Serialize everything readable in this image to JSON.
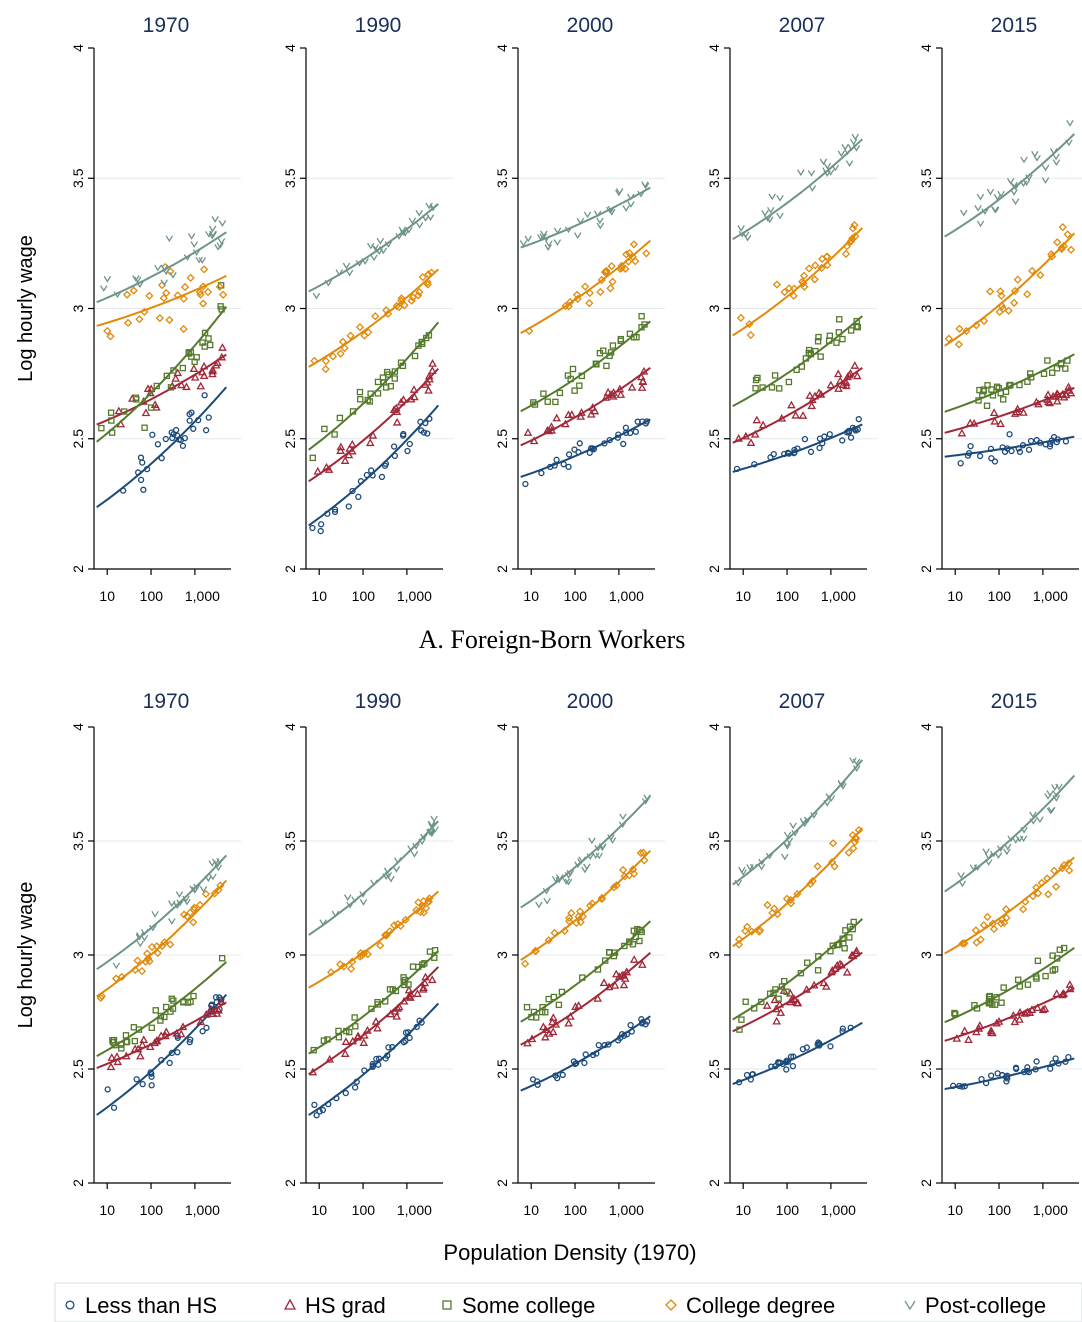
{
  "ylabel": "Log hourly wage",
  "xlabel": "Population Density (1970)",
  "y_ticks": [
    "2",
    "2.5",
    "3",
    "3.5",
    "4"
  ],
  "x_ticks": [
    "10",
    "100",
    "1,000"
  ],
  "legend": [
    {
      "label": "Less than HS",
      "symbol": "circle",
      "color": "#1b4a7a"
    },
    {
      "label": "HS grad",
      "symbol": "triangle",
      "color": "#a02838"
    },
    {
      "label": "Some college",
      "symbol": "square",
      "color": "#557a2c"
    },
    {
      "label": "College degree",
      "symbol": "diamond",
      "color": "#e08a0c"
    },
    {
      "label": "Post-college",
      "symbol": "chevron",
      "color": "#6f948a"
    }
  ],
  "chart_data": {
    "type": "scatter",
    "xscale": "log",
    "xlim": [
      5,
      6000
    ],
    "ylim": [
      2,
      4
    ],
    "panels": [
      {
        "title": "A. Foreign-Born Workers",
        "years": [
          {
            "year": "1970",
            "fits": [
              {
                "series": "Less than HS",
                "y_start": 2.23,
                "y_end": 2.71,
                "scatter": 0.09
              },
              {
                "series": "HS grad",
                "y_start": 2.55,
                "y_end": 2.83,
                "scatter": 0.05
              },
              {
                "series": "Some college",
                "y_start": 2.48,
                "y_end": 3.02,
                "scatter": 0.09
              },
              {
                "series": "College degree",
                "y_start": 2.93,
                "y_end": 3.13,
                "scatter": 0.12
              },
              {
                "series": "Post-college",
                "y_start": 3.02,
                "y_end": 3.3,
                "scatter": 0.09
              }
            ]
          },
          {
            "year": "1990",
            "fits": [
              {
                "series": "Less than HS",
                "y_start": 2.16,
                "y_end": 2.64,
                "scatter": 0.05
              },
              {
                "series": "HS grad",
                "y_start": 2.33,
                "y_end": 2.78,
                "scatter": 0.04
              },
              {
                "series": "Some college",
                "y_start": 2.45,
                "y_end": 2.96,
                "scatter": 0.05
              },
              {
                "series": "College degree",
                "y_start": 2.77,
                "y_end": 3.16,
                "scatter": 0.04
              },
              {
                "series": "Post-college",
                "y_start": 3.06,
                "y_end": 3.41,
                "scatter": 0.04
              }
            ]
          },
          {
            "year": "2000",
            "fits": [
              {
                "series": "Less than HS",
                "y_start": 2.35,
                "y_end": 2.58,
                "scatter": 0.03
              },
              {
                "series": "HS grad",
                "y_start": 2.47,
                "y_end": 2.78,
                "scatter": 0.04
              },
              {
                "series": "Some college",
                "y_start": 2.6,
                "y_end": 2.96,
                "scatter": 0.05
              },
              {
                "series": "College degree",
                "y_start": 2.9,
                "y_end": 3.27,
                "scatter": 0.05
              },
              {
                "series": "Post-college",
                "y_start": 3.23,
                "y_end": 3.47,
                "scatter": 0.05
              }
            ]
          },
          {
            "year": "2007",
            "fits": [
              {
                "series": "Less than HS",
                "y_start": 2.37,
                "y_end": 2.56,
                "scatter": 0.03
              },
              {
                "series": "HS grad",
                "y_start": 2.48,
                "y_end": 2.78,
                "scatter": 0.04
              },
              {
                "series": "Some college",
                "y_start": 2.62,
                "y_end": 2.98,
                "scatter": 0.05
              },
              {
                "series": "College degree",
                "y_start": 2.89,
                "y_end": 3.32,
                "scatter": 0.06
              },
              {
                "series": "Post-college",
                "y_start": 3.26,
                "y_end": 3.66,
                "scatter": 0.06
              }
            ]
          },
          {
            "year": "2015",
            "fits": [
              {
                "series": "Less than HS",
                "y_start": 2.43,
                "y_end": 2.51,
                "scatter": 0.04
              },
              {
                "series": "HS grad",
                "y_start": 2.52,
                "y_end": 2.7,
                "scatter": 0.03
              },
              {
                "series": "Some college",
                "y_start": 2.6,
                "y_end": 2.83,
                "scatter": 0.04
              },
              {
                "series": "College degree",
                "y_start": 2.85,
                "y_end": 3.3,
                "scatter": 0.07
              },
              {
                "series": "Post-college",
                "y_start": 3.27,
                "y_end": 3.68,
                "scatter": 0.06
              }
            ]
          }
        ]
      },
      {
        "title": "",
        "years": [
          {
            "year": "1970",
            "fits": [
              {
                "series": "Less than HS",
                "y_start": 2.29,
                "y_end": 2.84,
                "scatter": 0.06
              },
              {
                "series": "HS grad",
                "y_start": 2.5,
                "y_end": 2.8,
                "scatter": 0.03
              },
              {
                "series": "Some college",
                "y_start": 2.55,
                "y_end": 2.98,
                "scatter": 0.04
              },
              {
                "series": "College degree",
                "y_start": 2.81,
                "y_end": 3.34,
                "scatter": 0.04
              },
              {
                "series": "Post-college",
                "y_start": 2.93,
                "y_end": 3.45,
                "scatter": 0.04
              }
            ]
          },
          {
            "year": "1990",
            "fits": [
              {
                "series": "Less than HS",
                "y_start": 2.29,
                "y_end": 2.8,
                "scatter": 0.03
              },
              {
                "series": "HS grad",
                "y_start": 2.47,
                "y_end": 2.96,
                "scatter": 0.04
              },
              {
                "series": "Some college",
                "y_start": 2.56,
                "y_end": 3.03,
                "scatter": 0.04
              },
              {
                "series": "College degree",
                "y_start": 2.85,
                "y_end": 3.29,
                "scatter": 0.04
              },
              {
                "series": "Post-college",
                "y_start": 3.08,
                "y_end": 3.6,
                "scatter": 0.04
              }
            ]
          },
          {
            "year": "2000",
            "fits": [
              {
                "series": "Less than HS",
                "y_start": 2.4,
                "y_end": 2.74,
                "scatter": 0.03
              },
              {
                "series": "HS grad",
                "y_start": 2.6,
                "y_end": 3.02,
                "scatter": 0.04
              },
              {
                "series": "Some college",
                "y_start": 2.7,
                "y_end": 3.16,
                "scatter": 0.04
              },
              {
                "series": "College degree",
                "y_start": 2.97,
                "y_end": 3.47,
                "scatter": 0.05
              },
              {
                "series": "Post-college",
                "y_start": 3.2,
                "y_end": 3.71,
                "scatter": 0.05
              }
            ]
          },
          {
            "year": "2007",
            "fits": [
              {
                "series": "Less than HS",
                "y_start": 2.43,
                "y_end": 2.71,
                "scatter": 0.03
              },
              {
                "series": "HS grad",
                "y_start": 2.66,
                "y_end": 3.02,
                "scatter": 0.04
              },
              {
                "series": "Some college",
                "y_start": 2.71,
                "y_end": 3.17,
                "scatter": 0.05
              },
              {
                "series": "College degree",
                "y_start": 3.03,
                "y_end": 3.57,
                "scatter": 0.05
              },
              {
                "series": "Post-college",
                "y_start": 3.3,
                "y_end": 3.87,
                "scatter": 0.05
              }
            ]
          },
          {
            "year": "2015",
            "fits": [
              {
                "series": "Less than HS",
                "y_start": 2.41,
                "y_end": 2.55,
                "scatter": 0.03
              },
              {
                "series": "HS grad",
                "y_start": 2.62,
                "y_end": 2.86,
                "scatter": 0.03
              },
              {
                "series": "Some college",
                "y_start": 2.7,
                "y_end": 3.04,
                "scatter": 0.04
              },
              {
                "series": "College degree",
                "y_start": 3.0,
                "y_end": 3.44,
                "scatter": 0.05
              },
              {
                "series": "Post-college",
                "y_start": 3.27,
                "y_end": 3.8,
                "scatter": 0.05
              }
            ]
          }
        ]
      }
    ]
  }
}
